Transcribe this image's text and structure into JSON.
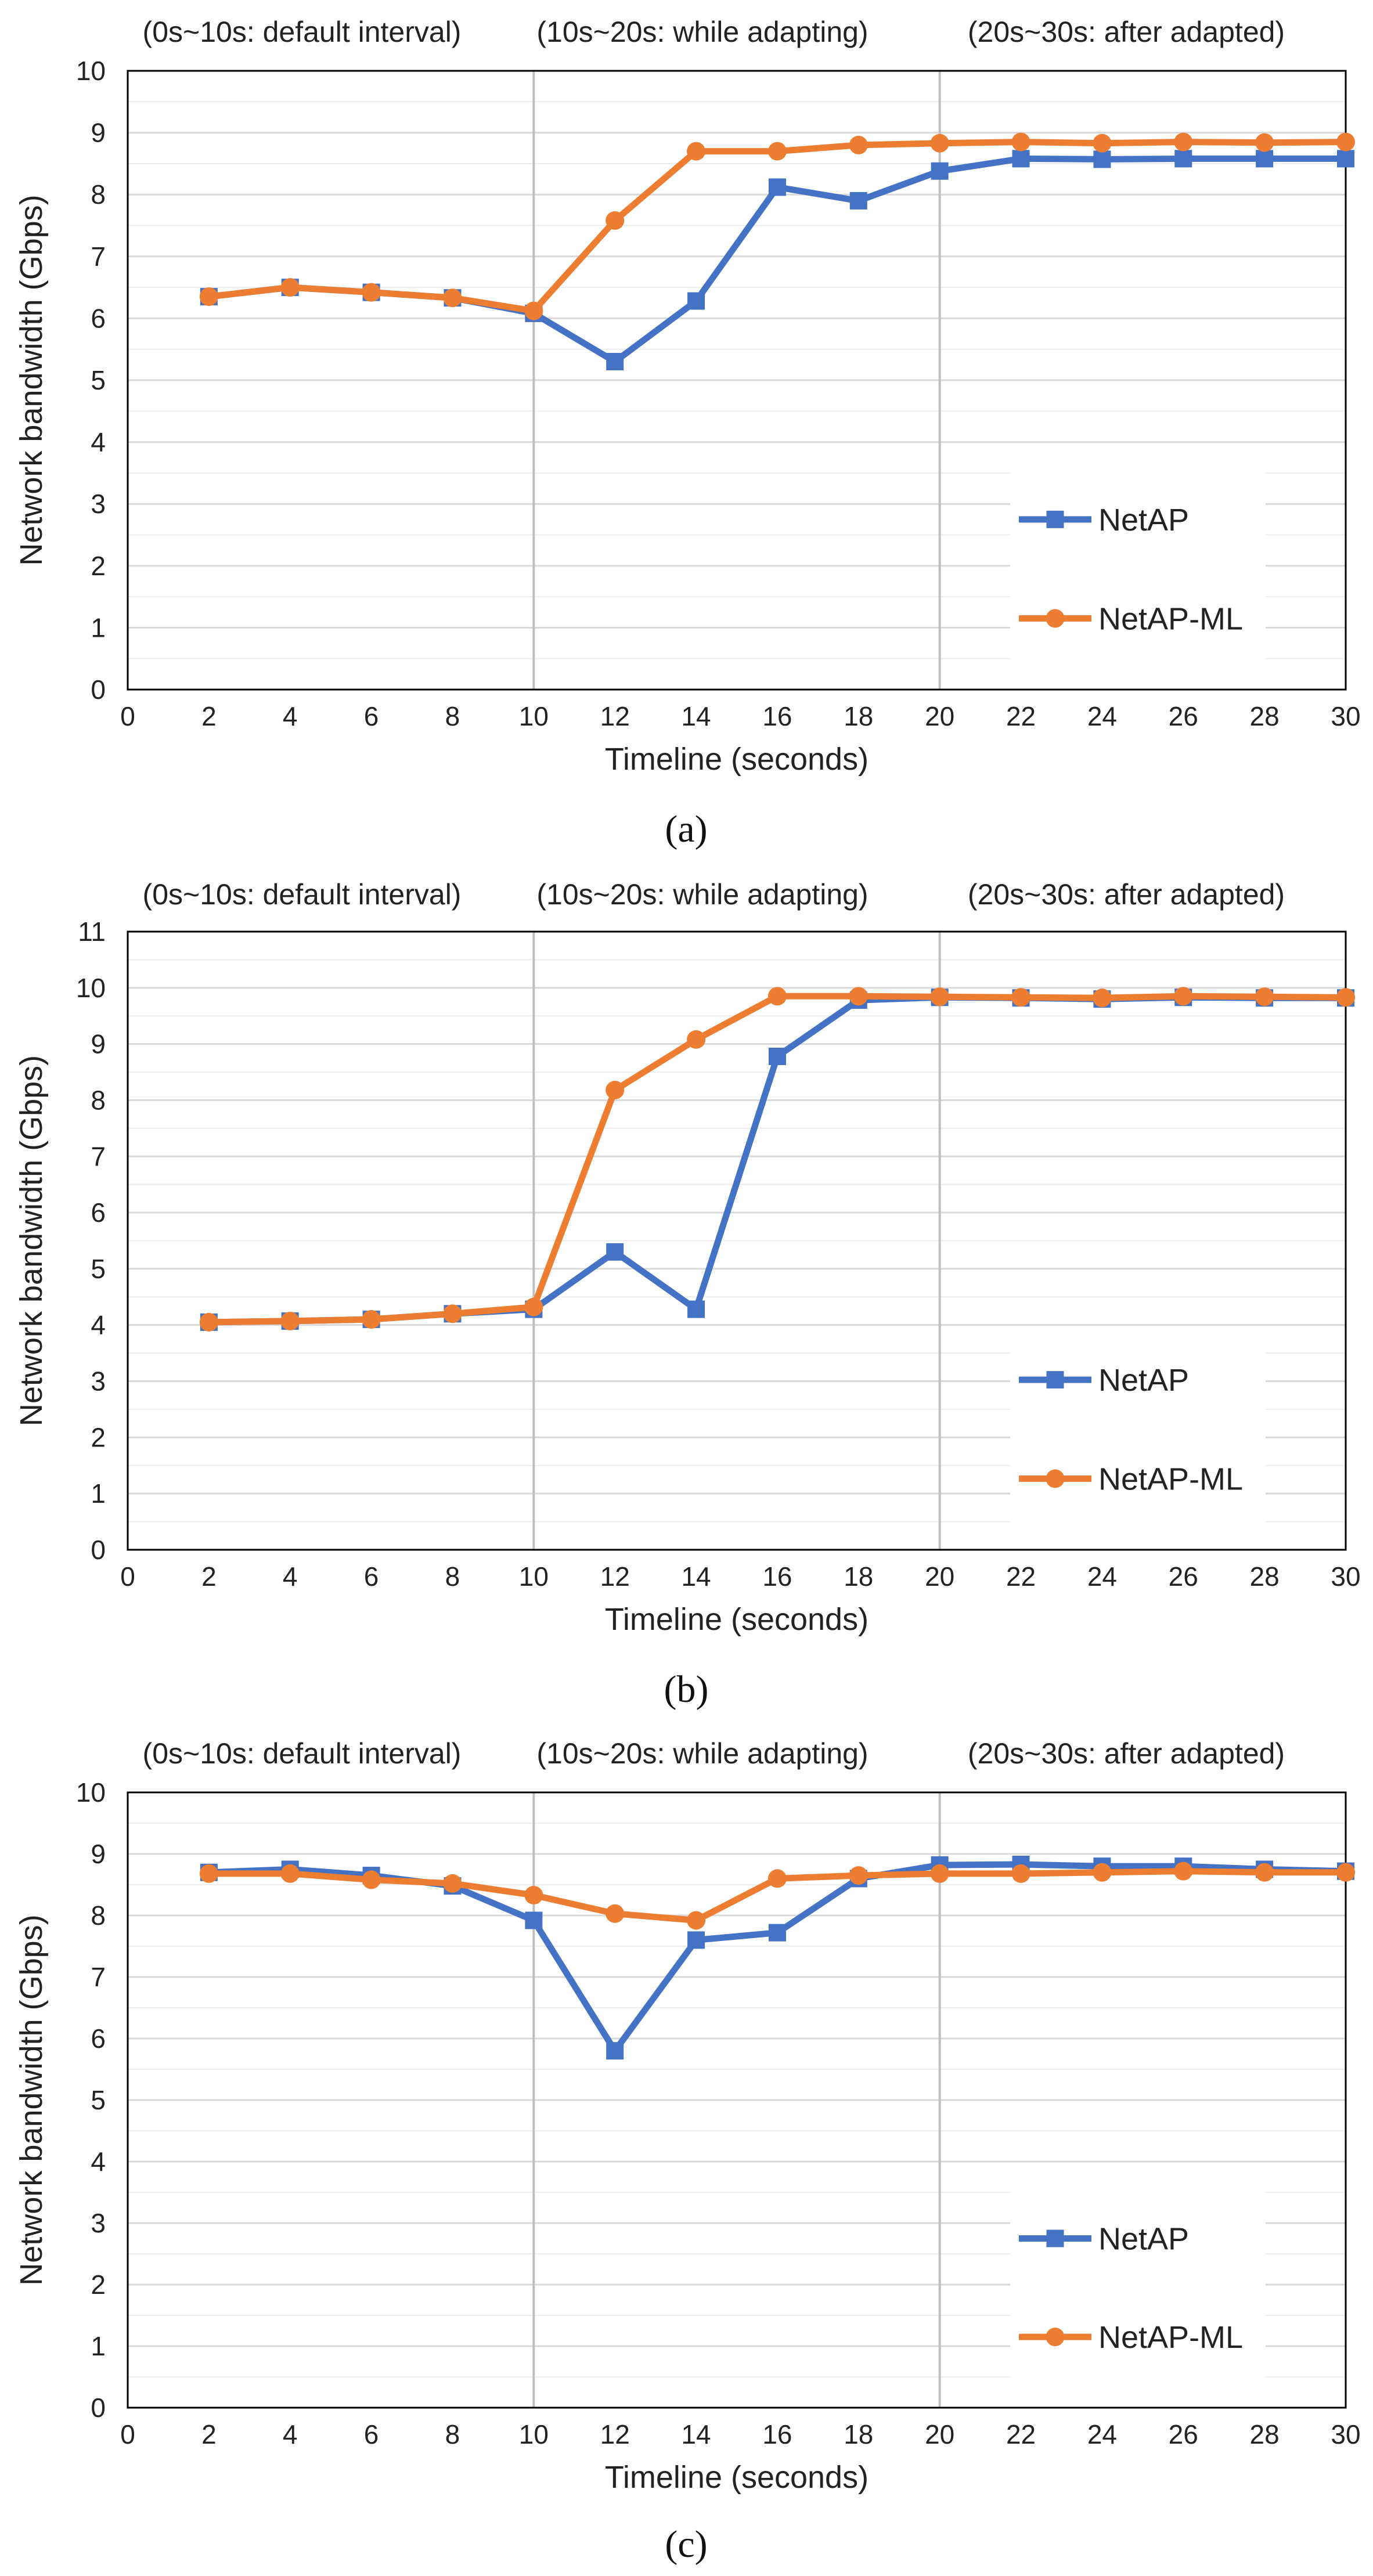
{
  "colors": {
    "netap": "#4472C4",
    "netap_ml": "#ED7D31",
    "grid": "#D9D9D9",
    "divider": "#BFBFBF",
    "axis": "#000000"
  },
  "chart_data": [
    {
      "type": "line",
      "caption": "(a)",
      "annotations": [
        "(0s~10s: default interval)",
        "(10s~20s: while adapting)",
        "(20s~30s: after adapted)"
      ],
      "xlabel": "Timeline (seconds)",
      "ylabel": "Network bandwidth (Gbps)",
      "xlim": [
        0,
        30
      ],
      "ylim": [
        0,
        10
      ],
      "x_ticks": [
        0,
        2,
        4,
        6,
        8,
        10,
        12,
        14,
        16,
        18,
        20,
        22,
        24,
        26,
        28,
        30
      ],
      "y_ticks": [
        0,
        1,
        2,
        3,
        4,
        5,
        6,
        7,
        8,
        9,
        10
      ],
      "phase_dividers": [
        10,
        20
      ],
      "legend_position": "bottom-right",
      "series": [
        {
          "name": "NetAP",
          "marker": "square",
          "x": [
            2,
            4,
            6,
            8,
            10,
            12,
            14,
            16,
            18,
            20,
            22,
            24,
            26,
            28,
            30
          ],
          "values": [
            6.35,
            6.5,
            6.42,
            6.33,
            6.08,
            5.3,
            6.28,
            8.12,
            7.9,
            8.38,
            8.58,
            8.57,
            8.58,
            8.58,
            8.58
          ]
        },
        {
          "name": "NetAP-ML",
          "marker": "circle",
          "x": [
            2,
            4,
            6,
            8,
            10,
            12,
            14,
            16,
            18,
            20,
            22,
            24,
            26,
            28,
            30
          ],
          "values": [
            6.35,
            6.5,
            6.42,
            6.33,
            6.12,
            7.58,
            8.7,
            8.7,
            8.8,
            8.83,
            8.85,
            8.83,
            8.85,
            8.84,
            8.85
          ]
        }
      ]
    },
    {
      "type": "line",
      "caption": "(b)",
      "annotations": [
        "(0s~10s: default interval)",
        "(10s~20s: while adapting)",
        "(20s~30s: after adapted)"
      ],
      "xlabel": "Timeline (seconds)",
      "ylabel": "Network bandwidth (Gbps)",
      "xlim": [
        0,
        30
      ],
      "ylim": [
        0,
        11
      ],
      "x_ticks": [
        0,
        2,
        4,
        6,
        8,
        10,
        12,
        14,
        16,
        18,
        20,
        22,
        24,
        26,
        28,
        30
      ],
      "y_ticks": [
        0,
        1,
        2,
        3,
        4,
        5,
        6,
        7,
        8,
        9,
        10,
        11
      ],
      "phase_dividers": [
        10,
        20
      ],
      "legend_position": "bottom-right",
      "series": [
        {
          "name": "NetAP",
          "marker": "square",
          "x": [
            2,
            4,
            6,
            8,
            10,
            12,
            14,
            16,
            18,
            20,
            22,
            24,
            26,
            28,
            30
          ],
          "values": [
            4.05,
            4.07,
            4.1,
            4.2,
            4.28,
            5.3,
            4.28,
            8.78,
            9.78,
            9.83,
            9.82,
            9.8,
            9.83,
            9.82,
            9.82
          ]
        },
        {
          "name": "NetAP-ML",
          "marker": "circle",
          "x": [
            2,
            4,
            6,
            8,
            10,
            12,
            14,
            16,
            18,
            20,
            22,
            24,
            26,
            28,
            30
          ],
          "values": [
            4.05,
            4.07,
            4.1,
            4.2,
            4.32,
            8.18,
            9.08,
            9.85,
            9.85,
            9.84,
            9.83,
            9.82,
            9.85,
            9.84,
            9.83
          ]
        }
      ]
    },
    {
      "type": "line",
      "caption": "(c)",
      "annotations": [
        "(0s~10s: default interval)",
        "(10s~20s: while adapting)",
        "(20s~30s: after adapted)"
      ],
      "xlabel": "Timeline (seconds)",
      "ylabel": "Network bandwidth (Gbps)",
      "xlim": [
        0,
        30
      ],
      "ylim": [
        0,
        10
      ],
      "x_ticks": [
        0,
        2,
        4,
        6,
        8,
        10,
        12,
        14,
        16,
        18,
        20,
        22,
        24,
        26,
        28,
        30
      ],
      "y_ticks": [
        0,
        1,
        2,
        3,
        4,
        5,
        6,
        7,
        8,
        9,
        10
      ],
      "phase_dividers": [
        10,
        20
      ],
      "legend_position": "bottom-right",
      "series": [
        {
          "name": "NetAP",
          "marker": "square",
          "x": [
            2,
            4,
            6,
            8,
            10,
            12,
            14,
            16,
            18,
            20,
            22,
            24,
            26,
            28,
            30
          ],
          "values": [
            8.7,
            8.75,
            8.65,
            8.48,
            7.92,
            5.8,
            7.6,
            7.72,
            8.6,
            8.82,
            8.83,
            8.8,
            8.8,
            8.75,
            8.72
          ]
        },
        {
          "name": "NetAP-ML",
          "marker": "circle",
          "x": [
            2,
            4,
            6,
            8,
            10,
            12,
            14,
            16,
            18,
            20,
            22,
            24,
            26,
            28,
            30
          ],
          "values": [
            8.68,
            8.68,
            8.58,
            8.52,
            8.33,
            8.03,
            7.92,
            8.6,
            8.65,
            8.68,
            8.68,
            8.7,
            8.72,
            8.7,
            8.7
          ]
        }
      ]
    }
  ]
}
